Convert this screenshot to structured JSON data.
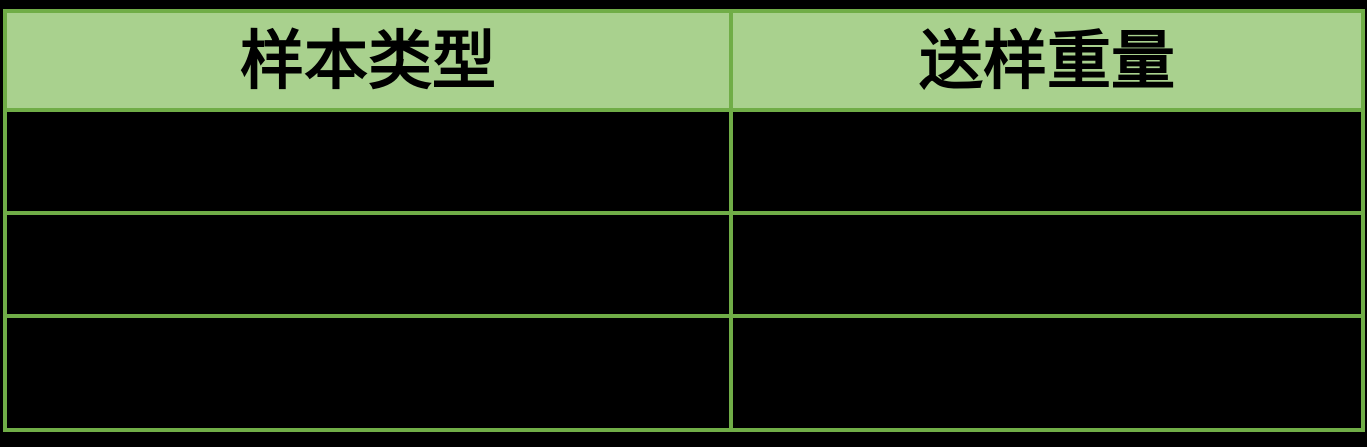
{
  "theme": {
    "page-bg": "#000000",
    "table-border": "#70AD47",
    "header-fill": "#A9D18E",
    "header-text": "#000000",
    "cell-fill": "#000000"
  },
  "table": {
    "columns": [
      {
        "label": "样本类型"
      },
      {
        "label": "送样重量"
      }
    ],
    "rows": [
      {
        "cells": [
          "",
          ""
        ]
      },
      {
        "cells": [
          "",
          ""
        ]
      },
      {
        "cells": [
          "",
          ""
        ]
      }
    ]
  }
}
